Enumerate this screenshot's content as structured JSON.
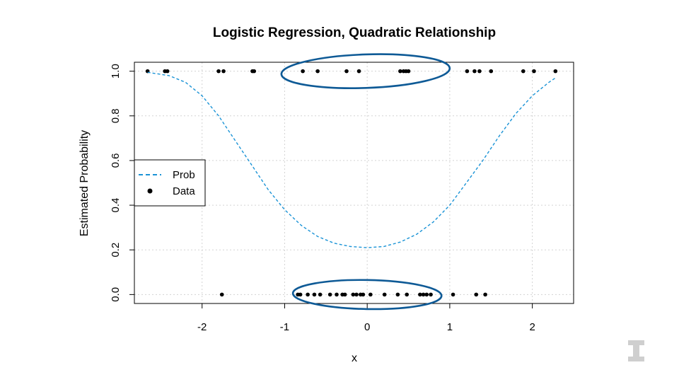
{
  "chart_data": {
    "type": "scatter",
    "title": "Logistic Regression, Quadratic Relationship",
    "xlabel": "x",
    "ylabel": "Estimated Probability",
    "xlim": [
      -2.82,
      2.5
    ],
    "ylim": [
      -0.04,
      1.04
    ],
    "x_ticks": [
      -2,
      -1,
      0,
      1,
      2
    ],
    "x_tick_labels": [
      "-2",
      "-1",
      "0",
      "1",
      "2"
    ],
    "y_ticks": [
      0.0,
      0.2,
      0.4,
      0.6,
      0.8,
      1.0
    ],
    "y_tick_labels": [
      "0.0",
      "0.2",
      "0.4",
      "0.6",
      "0.8",
      "1.0"
    ],
    "grid": true,
    "legend": {
      "placement": "left",
      "entries": [
        {
          "label": "Prob",
          "style": "dashed-line",
          "color": "#1a93d6"
        },
        {
          "label": "Data",
          "style": "point",
          "color": "#000000"
        }
      ]
    },
    "series": [
      {
        "name": "Data",
        "kind": "points",
        "color": "#000000",
        "points": [
          {
            "x": -2.66,
            "y": 1
          },
          {
            "x": -2.45,
            "y": 1
          },
          {
            "x": -2.42,
            "y": 1
          },
          {
            "x": -1.8,
            "y": 1
          },
          {
            "x": -1.74,
            "y": 1
          },
          {
            "x": -1.39,
            "y": 1
          },
          {
            "x": -1.37,
            "y": 1
          },
          {
            "x": -0.78,
            "y": 1
          },
          {
            "x": -0.6,
            "y": 1
          },
          {
            "x": -0.25,
            "y": 1
          },
          {
            "x": -0.1,
            "y": 1
          },
          {
            "x": 0.4,
            "y": 1
          },
          {
            "x": 0.44,
            "y": 1
          },
          {
            "x": 0.47,
            "y": 1
          },
          {
            "x": 0.5,
            "y": 1
          },
          {
            "x": 1.21,
            "y": 1
          },
          {
            "x": 1.3,
            "y": 1
          },
          {
            "x": 1.36,
            "y": 1
          },
          {
            "x": 1.5,
            "y": 1
          },
          {
            "x": 1.89,
            "y": 1
          },
          {
            "x": 2.02,
            "y": 1
          },
          {
            "x": 2.28,
            "y": 1
          },
          {
            "x": -1.76,
            "y": 0
          },
          {
            "x": -0.84,
            "y": 0
          },
          {
            "x": -0.81,
            "y": 0
          },
          {
            "x": -0.72,
            "y": 0
          },
          {
            "x": -0.64,
            "y": 0
          },
          {
            "x": -0.57,
            "y": 0
          },
          {
            "x": -0.45,
            "y": 0
          },
          {
            "x": -0.37,
            "y": 0
          },
          {
            "x": -0.3,
            "y": 0
          },
          {
            "x": -0.27,
            "y": 0
          },
          {
            "x": -0.17,
            "y": 0
          },
          {
            "x": -0.13,
            "y": 0
          },
          {
            "x": -0.08,
            "y": 0
          },
          {
            "x": -0.05,
            "y": 0
          },
          {
            "x": 0.04,
            "y": 0
          },
          {
            "x": 0.21,
            "y": 0
          },
          {
            "x": 0.37,
            "y": 0
          },
          {
            "x": 0.48,
            "y": 0
          },
          {
            "x": 0.64,
            "y": 0
          },
          {
            "x": 0.68,
            "y": 0
          },
          {
            "x": 0.72,
            "y": 0
          },
          {
            "x": 0.77,
            "y": 0
          },
          {
            "x": 1.04,
            "y": 0
          },
          {
            "x": 1.32,
            "y": 0
          },
          {
            "x": 1.43,
            "y": 0
          }
        ]
      },
      {
        "name": "Prob",
        "kind": "line",
        "style": "dashed",
        "color": "#1a93d6",
        "points": [
          {
            "x": -2.66,
            "y": 0.995
          },
          {
            "x": -2.4,
            "y": 0.98
          },
          {
            "x": -2.2,
            "y": 0.95
          },
          {
            "x": -2.0,
            "y": 0.89
          },
          {
            "x": -1.8,
            "y": 0.8
          },
          {
            "x": -1.6,
            "y": 0.69
          },
          {
            "x": -1.4,
            "y": 0.58
          },
          {
            "x": -1.2,
            "y": 0.47
          },
          {
            "x": -1.0,
            "y": 0.38
          },
          {
            "x": -0.8,
            "y": 0.31
          },
          {
            "x": -0.6,
            "y": 0.26
          },
          {
            "x": -0.4,
            "y": 0.23
          },
          {
            "x": -0.2,
            "y": 0.215
          },
          {
            "x": 0.0,
            "y": 0.21
          },
          {
            "x": 0.2,
            "y": 0.215
          },
          {
            "x": 0.4,
            "y": 0.235
          },
          {
            "x": 0.6,
            "y": 0.27
          },
          {
            "x": 0.8,
            "y": 0.325
          },
          {
            "x": 1.0,
            "y": 0.4
          },
          {
            "x": 1.2,
            "y": 0.5
          },
          {
            "x": 1.4,
            "y": 0.6
          },
          {
            "x": 1.6,
            "y": 0.71
          },
          {
            "x": 1.8,
            "y": 0.81
          },
          {
            "x": 2.0,
            "y": 0.89
          },
          {
            "x": 2.2,
            "y": 0.95
          },
          {
            "x": 2.28,
            "y": 0.97
          }
        ]
      }
    ],
    "annotations": [
      {
        "kind": "hand-drawn-ellipse",
        "color": "#0e5a96",
        "around": "y=1 points near x=0",
        "cx": -0.02,
        "cy": 1.0,
        "rx": 1.02,
        "ry": 0.075
      },
      {
        "kind": "hand-drawn-ellipse",
        "color": "#0e5a96",
        "around": "y=0 points near x=0",
        "cx": 0.0,
        "cy": 0.0,
        "rx": 0.9,
        "ry": 0.065
      }
    ]
  },
  "logo": {
    "text": "I",
    "color": "#cfcfcf"
  }
}
